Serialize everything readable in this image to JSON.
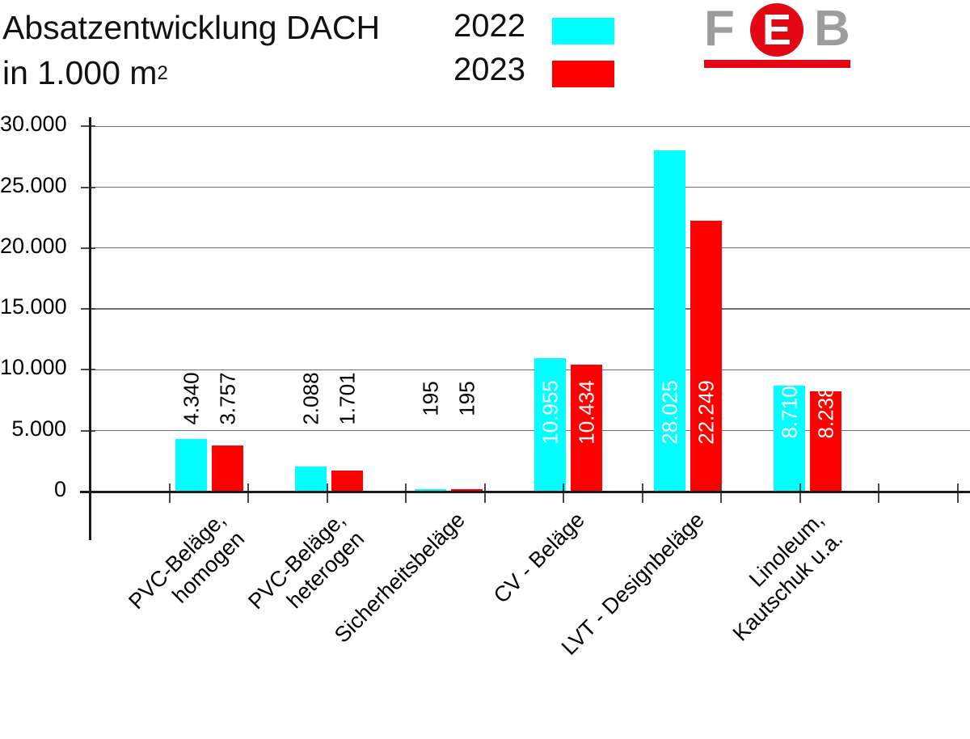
{
  "title": {
    "line1": "Absatzentwicklung DACH",
    "line2": "in 1.000 m",
    "line2_superscript": "2"
  },
  "logo": {
    "letter_f": "F",
    "letter_e": "E",
    "letter_b": "B",
    "gray": "#9d9d9c",
    "red": "#e30613"
  },
  "colors": {
    "series_2022": "#00ffff",
    "series_2023": "#ff0000",
    "grid": "#6e6e6e",
    "axis": "#1a1a1a"
  },
  "chart_data": {
    "type": "bar",
    "title": "Absatzentwicklung DACH in 1.000 m²",
    "unit": "1.000 m²",
    "categories": [
      "PVC-Beläge,\nhomogen",
      "PVC-Beläge,\nheterogen",
      "Sicherheitsbeläge",
      "CV - Beläge",
      "LVT - Designbeläge",
      "Linoleum,\nKautschuk u.a."
    ],
    "series": [
      {
        "name": "2022",
        "color": "#00ffff",
        "values": [
          4340,
          2088,
          195,
          10955,
          28025,
          8710
        ],
        "value_labels": [
          "4.340",
          "2.088",
          "195",
          "10.955",
          "28.025",
          "8.710"
        ]
      },
      {
        "name": "2023",
        "color": "#ff0000",
        "values": [
          3757,
          1701,
          195,
          10434,
          22249,
          8238
        ],
        "value_labels": [
          "3.757",
          "1.701",
          "195",
          "10.434",
          "22.249",
          "8.238"
        ]
      }
    ],
    "ylim": [
      0,
      30000
    ],
    "y_ticks": [
      {
        "value": 0,
        "label": "0"
      },
      {
        "value": 5000,
        "label": "5.000"
      },
      {
        "value": 10000,
        "label": "10.000"
      },
      {
        "value": 15000,
        "label": "15.000"
      },
      {
        "value": 20000,
        "label": "20.000"
      },
      {
        "value": 25000,
        "label": "25.000"
      },
      {
        "value": 30000,
        "label": "30.000"
      }
    ],
    "grid": "horizontal",
    "legend_position": "top"
  }
}
